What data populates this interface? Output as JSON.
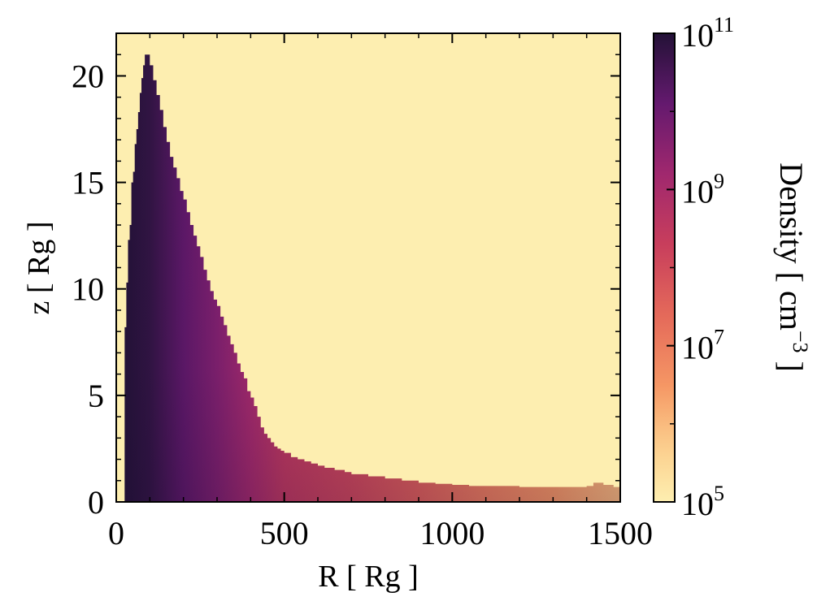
{
  "chart_data": {
    "type": "heatmap",
    "title": "",
    "xlabel": "R [ Rg ]",
    "ylabel": "z [ Rg ]",
    "xlim": [
      0,
      1500
    ],
    "ylim": [
      0,
      22
    ],
    "x_ticks": [
      0,
      500,
      1000,
      1500
    ],
    "y_ticks": [
      0,
      5,
      10,
      15,
      20
    ],
    "x_tick_labels": [
      "0",
      "500",
      "1000",
      "1500"
    ],
    "y_tick_labels": [
      "0",
      "5",
      "10",
      "15",
      "20"
    ],
    "colorbar": {
      "label_main": "Density [ cm",
      "label_sup": "−3",
      "label_end": " ]",
      "scale": "log",
      "range": [
        100000,
        100000000000
      ],
      "ticks": [
        100000,
        10000000,
        1000000000,
        100000000000
      ],
      "tick_bases": [
        "10",
        "10",
        "10",
        "10"
      ],
      "tick_exponents": [
        "5",
        "7",
        "9",
        "11"
      ],
      "colormap": "magma_r",
      "background_color": "#fdeeb0"
    },
    "envelope": {
      "R": [
        25,
        30,
        35,
        40,
        45,
        50,
        55,
        60,
        65,
        70,
        75,
        80,
        85,
        90,
        100,
        110,
        120,
        130,
        140,
        150,
        160,
        170,
        180,
        190,
        200,
        210,
        220,
        230,
        240,
        250,
        260,
        270,
        280,
        290,
        300,
        310,
        320,
        330,
        340,
        350,
        360,
        370,
        380,
        390,
        400,
        410,
        420,
        430,
        440,
        450,
        460,
        470,
        480,
        490,
        500,
        510,
        520,
        530,
        540,
        550,
        560,
        570,
        580,
        590,
        600,
        620,
        650,
        680,
        700,
        750,
        800,
        850,
        900,
        950,
        1000,
        1050,
        1100,
        1150,
        1200,
        1250,
        1300,
        1350,
        1400,
        1420,
        1450,
        1480,
        1500
      ],
      "z_top": [
        8.2,
        10.3,
        12.3,
        13.0,
        15.0,
        15.5,
        16.8,
        17.5,
        18.3,
        19.2,
        19.9,
        20.5,
        21.0,
        21.0,
        20.5,
        19.8,
        19.1,
        18.4,
        17.6,
        16.9,
        16.2,
        15.7,
        15.2,
        14.6,
        14.2,
        13.6,
        13.0,
        12.5,
        12.0,
        11.5,
        10.9,
        10.4,
        9.9,
        9.5,
        9.2,
        8.7,
        8.3,
        7.8,
        7.4,
        7.0,
        6.5,
        6.1,
        5.8,
        5.2,
        4.9,
        4.5,
        4.0,
        3.5,
        3.2,
        3.0,
        2.8,
        2.6,
        2.5,
        2.4,
        2.3,
        2.3,
        2.1,
        2.1,
        2.0,
        2.0,
        1.9,
        1.9,
        1.8,
        1.8,
        1.7,
        1.6,
        1.5,
        1.4,
        1.3,
        1.2,
        1.1,
        1.0,
        0.9,
        0.85,
        0.8,
        0.75,
        0.75,
        0.75,
        0.7,
        0.7,
        0.7,
        0.7,
        0.75,
        0.9,
        0.8,
        0.7,
        0.7
      ],
      "density_log10_at_R": [
        11.0,
        10.8,
        10.2,
        9.7,
        9.1,
        8.5,
        8.1,
        7.6,
        7.0,
        6.5,
        6.0
      ],
      "density_R_nodes": [
        25,
        100,
        200,
        300,
        400,
        500,
        700,
        900,
        1100,
        1300,
        1500
      ]
    }
  }
}
